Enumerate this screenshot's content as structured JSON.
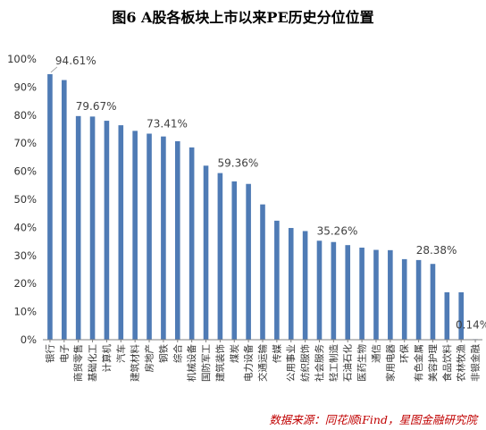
{
  "title": "图6 A股各板块上市以来PE历史分位位置",
  "source": "数据来源：同花顺iFind，星图金融研究院",
  "colors": {
    "bar": "#4f7bb5",
    "axis": "#808080",
    "grid_text": "#333333",
    "source": "#c00000"
  },
  "chart_data": {
    "type": "bar",
    "title": "图6 A股各板块上市以来PE历史分位位置",
    "xlabel": "",
    "ylabel": "",
    "ylim": [
      0,
      100
    ],
    "ytick_labels": [
      "0%",
      "10%",
      "20%",
      "30%",
      "40%",
      "50%",
      "60%",
      "70%",
      "80%",
      "90%",
      "100%"
    ],
    "grid": false,
    "categories": [
      "银行",
      "电子",
      "商贸零售",
      "基础化工",
      "计算机",
      "汽车",
      "建筑材料",
      "房地产",
      "钢铁",
      "综合",
      "机械设备",
      "国防军工",
      "建筑装饰",
      "煤炭",
      "电力设备",
      "交通运输",
      "传媒",
      "公用事业",
      "纺织服饰",
      "社会服务",
      "轻工制造",
      "石油石化",
      "医药生物",
      "通信",
      "家用电器",
      "环保",
      "有色金属",
      "美容护理",
      "食品饮料",
      "农林牧渔",
      "非银金融"
    ],
    "values": [
      94.61,
      92.5,
      79.67,
      79.5,
      78.0,
      76.4,
      74.4,
      73.41,
      72.4,
      70.7,
      68.5,
      62.0,
      59.36,
      56.4,
      55.5,
      48.2,
      42.4,
      39.8,
      38.7,
      35.26,
      34.8,
      33.7,
      32.8,
      32.0,
      31.9,
      28.7,
      28.38,
      27.0,
      16.9,
      16.9,
      0.14
    ],
    "data_labels": [
      {
        "category": "银行",
        "text": "94.61%"
      },
      {
        "category": "商贸零售",
        "text": "79.67%"
      },
      {
        "category": "房地产",
        "text": "73.41%"
      },
      {
        "category": "建筑装饰",
        "text": "59.36%"
      },
      {
        "category": "社会服务",
        "text": "35.26%"
      },
      {
        "category": "有色金属",
        "text": "28.38%"
      },
      {
        "category": "非银金融",
        "text": "0.14%"
      }
    ]
  }
}
